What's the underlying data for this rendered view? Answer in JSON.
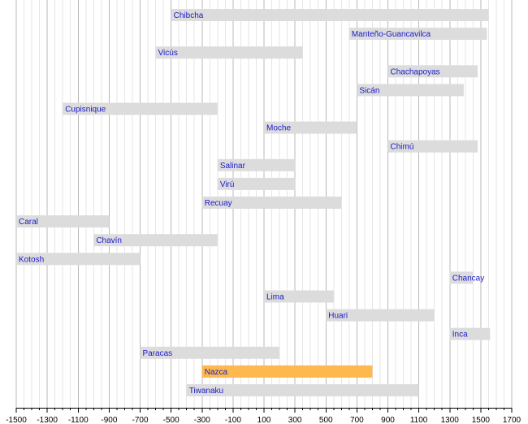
{
  "chart_data": {
    "type": "bar",
    "orientation": "horizontal-timeline",
    "title": "",
    "xlabel": "",
    "ylabel": "",
    "xlim": [
      -1500,
      1700
    ],
    "x_ticks": [
      -1500,
      -1300,
      -1100,
      -900,
      -700,
      -500,
      -300,
      -100,
      100,
      300,
      500,
      700,
      900,
      1100,
      1300,
      1500,
      1700
    ],
    "x_tick_labels": [
      "-1500",
      "-1300",
      "-1100",
      "-900",
      "-700",
      "-500",
      "-300",
      "-100",
      "100",
      "300",
      "500",
      "700",
      "900",
      "1100",
      "1300",
      "1500",
      "1700"
    ],
    "grid": true,
    "bars": [
      {
        "name": "Chibcha",
        "start": -500,
        "end": 1550,
        "highlight": false
      },
      {
        "name": "Manteño-Guancavilca",
        "start": 650,
        "end": 1540,
        "highlight": false
      },
      {
        "name": "Vicús",
        "start": -600,
        "end": 350,
        "highlight": false
      },
      {
        "name": "Chachapoyas",
        "start": 900,
        "end": 1480,
        "highlight": false
      },
      {
        "name": "Sicán",
        "start": 700,
        "end": 1390,
        "highlight": false
      },
      {
        "name": "Cupisnique",
        "start": -1200,
        "end": -200,
        "highlight": false
      },
      {
        "name": "Moche",
        "start": 100,
        "end": 700,
        "highlight": false
      },
      {
        "name": "Chimú",
        "start": 900,
        "end": 1480,
        "highlight": false
      },
      {
        "name": "Salinar",
        "start": -200,
        "end": 300,
        "highlight": false
      },
      {
        "name": "Virú",
        "start": -200,
        "end": 300,
        "highlight": false
      },
      {
        "name": "Recuay",
        "start": -300,
        "end": 600,
        "highlight": false
      },
      {
        "name": "Caral",
        "start": -1500,
        "end": -900,
        "highlight": false
      },
      {
        "name": "Chavín",
        "start": -1000,
        "end": -200,
        "highlight": false
      },
      {
        "name": "Kotosh",
        "start": -1500,
        "end": -700,
        "highlight": false
      },
      {
        "name": "Chancay",
        "start": 1300,
        "end": 1450,
        "highlight": false
      },
      {
        "name": "Lima",
        "start": 100,
        "end": 550,
        "highlight": false
      },
      {
        "name": "Huari",
        "start": 500,
        "end": 1200,
        "highlight": false
      },
      {
        "name": "Inca",
        "start": 1300,
        "end": 1560,
        "highlight": false
      },
      {
        "name": "Paracas",
        "start": -700,
        "end": 200,
        "highlight": false
      },
      {
        "name": "Nazca",
        "start": -300,
        "end": 800,
        "highlight": true
      },
      {
        "name": "Tiwanaku",
        "start": -400,
        "end": 1100,
        "highlight": false
      }
    ],
    "colors": {
      "bar": "#dcdcdc",
      "highlight": "#fdb94d",
      "label": "#1a1acc",
      "grid_major": "#b8b8b8",
      "grid_minor": "#e6e6e6",
      "axis": "#000000"
    }
  }
}
